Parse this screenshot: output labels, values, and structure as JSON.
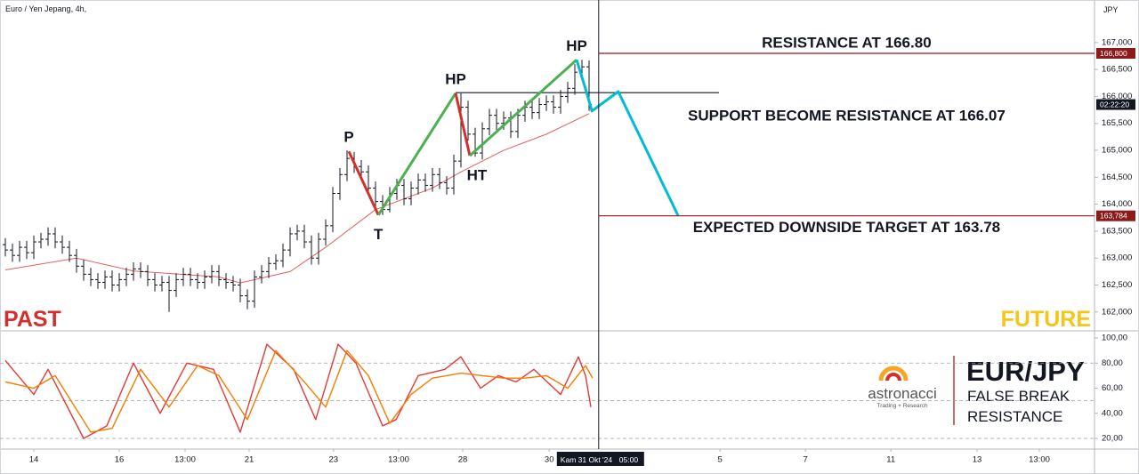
{
  "title": "Euro / Yen Jepang, 4h,",
  "currency": "JPY",
  "past_label": "PAST",
  "future_label": "FUTURE",
  "brand": {
    "name": "astronacci",
    "tagline": "Trading + Research",
    "pair": "EUR/JPY",
    "caption": [
      "FALSE BREAK",
      "RESISTANCE"
    ]
  },
  "countdown": "02:22:20",
  "chart_data": [
    {
      "type": "ohlc",
      "color": "#131722",
      "xlim": [
        -0.75,
        153
      ],
      "ylim": [
        161.65,
        167.79
      ],
      "xticks": [
        {
          "value": 4,
          "label": "14"
        },
        {
          "value": 16,
          "label": "16"
        },
        {
          "value": 25.25,
          "label": "13:00"
        },
        {
          "value": 34.25,
          "label": "21"
        },
        {
          "value": 46.1,
          "label": "23"
        },
        {
          "value": 55.25,
          "label": "13:00"
        },
        {
          "value": 64.25,
          "label": "28"
        },
        {
          "value": 76.4,
          "label": "30"
        },
        {
          "value": 100.4,
          "label": "5"
        },
        {
          "value": 112.4,
          "label": "7"
        },
        {
          "value": 124.4,
          "label": "11"
        },
        {
          "value": 136.5,
          "label": "13"
        },
        {
          "value": 145.25,
          "label": "13:00"
        }
      ],
      "crosshair": {
        "value": 83.35,
        "label": "Kam 31 Okt '24",
        "time": "05:00"
      },
      "yticks": [
        {
          "value": 167,
          "label": "167,000"
        },
        {
          "value": 166.5,
          "label": "166,500"
        },
        {
          "value": 166,
          "label": "166,000"
        },
        {
          "value": 165.5,
          "label": "165,500"
        },
        {
          "value": 165,
          "label": "165,000"
        },
        {
          "value": 164.5,
          "label": "164,500"
        },
        {
          "value": 164,
          "label": "164,000"
        },
        {
          "value": 163.5,
          "label": "163,500"
        },
        {
          "value": 163,
          "label": "163,000"
        },
        {
          "value": 162.5,
          "label": "162,500"
        },
        {
          "value": 162,
          "label": "162,000"
        }
      ],
      "open": [
        163.25,
        163.15,
        163.05,
        163.2,
        163.1,
        163.3,
        163.35,
        163.45,
        163.3,
        163.2,
        163.05,
        162.85,
        162.7,
        162.6,
        162.55,
        162.65,
        162.5,
        162.6,
        162.7,
        162.8,
        162.75,
        162.6,
        162.5,
        162.55,
        162.4,
        162.6,
        162.7,
        162.6,
        162.55,
        162.65,
        162.75,
        162.6,
        162.55,
        162.5,
        162.3,
        162.2,
        162.65,
        162.75,
        162.9,
        162.95,
        163.15,
        163.45,
        163.5,
        163.3,
        163.0,
        163.35,
        163.6,
        164.2,
        164.55,
        164.85,
        164.7,
        164.6,
        164.3,
        164.05,
        163.9,
        164.2,
        164.35,
        164.1,
        164.3,
        164.45,
        164.35,
        164.55,
        164.4,
        164.3,
        164.8,
        165.8,
        165.3,
        164.95,
        165.4,
        165.65,
        165.5,
        165.6,
        165.35,
        165.65,
        165.8,
        165.7,
        165.85,
        165.9,
        165.8,
        166.0,
        166.15,
        166.45,
        166.55
      ],
      "high": [
        163.37,
        163.27,
        163.32,
        163.32,
        163.42,
        163.47,
        163.57,
        163.57,
        163.42,
        163.32,
        163.17,
        162.97,
        162.82,
        162.72,
        162.77,
        162.77,
        162.72,
        162.82,
        162.92,
        162.92,
        162.87,
        162.72,
        162.67,
        162.67,
        162.72,
        162.82,
        162.82,
        162.72,
        162.77,
        162.87,
        162.87,
        162.72,
        162.67,
        162.62,
        162.42,
        162.77,
        162.87,
        163.02,
        163.07,
        163.27,
        163.57,
        163.62,
        163.62,
        163.42,
        163.47,
        163.72,
        164.32,
        164.67,
        165.0,
        164.97,
        164.82,
        164.72,
        164.42,
        164.17,
        164.32,
        164.47,
        164.47,
        164.42,
        164.57,
        164.57,
        164.67,
        164.67,
        164.52,
        164.92,
        166.06,
        165.92,
        165.42,
        165.52,
        165.77,
        165.77,
        165.72,
        165.72,
        165.77,
        165.92,
        165.92,
        165.97,
        166.02,
        166.02,
        166.12,
        166.27,
        166.6,
        166.68,
        166.67
      ],
      "low": [
        163.03,
        162.93,
        162.93,
        162.98,
        162.98,
        163.18,
        163.23,
        163.18,
        163.08,
        162.93,
        162.73,
        162.58,
        162.48,
        162.43,
        162.43,
        162.38,
        162.38,
        162.48,
        162.58,
        162.63,
        162.48,
        162.38,
        162.38,
        162.0,
        162.28,
        162.48,
        162.48,
        162.43,
        162.43,
        162.53,
        162.48,
        162.43,
        162.38,
        162.18,
        162.05,
        162.08,
        162.53,
        162.63,
        162.78,
        162.83,
        163.03,
        163.33,
        163.18,
        162.88,
        162.88,
        163.23,
        163.48,
        164.08,
        164.43,
        164.58,
        164.48,
        164.18,
        163.93,
        163.8,
        163.85,
        164.08,
        163.98,
        163.98,
        164.18,
        164.23,
        164.23,
        164.28,
        164.18,
        164.18,
        164.68,
        165.18,
        164.88,
        164.83,
        165.28,
        165.38,
        165.38,
        165.23,
        165.23,
        165.53,
        165.58,
        165.58,
        165.73,
        165.68,
        165.68,
        165.88,
        166.03,
        166.33,
        165.73
      ],
      "close": [
        163.15,
        163.05,
        163.2,
        163.1,
        163.3,
        163.35,
        163.45,
        163.3,
        163.2,
        163.05,
        162.85,
        162.7,
        162.6,
        162.55,
        162.65,
        162.5,
        162.6,
        162.7,
        162.8,
        162.75,
        162.6,
        162.5,
        162.55,
        162.4,
        162.6,
        162.7,
        162.6,
        162.55,
        162.65,
        162.75,
        162.6,
        162.55,
        162.5,
        162.3,
        162.2,
        162.65,
        162.75,
        162.9,
        162.95,
        163.15,
        163.45,
        163.5,
        163.3,
        163.0,
        163.35,
        163.6,
        164.2,
        164.55,
        164.85,
        164.7,
        164.6,
        164.3,
        164.05,
        163.9,
        164.2,
        164.35,
        164.1,
        164.3,
        164.45,
        164.35,
        164.55,
        164.4,
        164.3,
        164.8,
        165.8,
        165.3,
        164.95,
        165.4,
        165.65,
        165.5,
        165.6,
        165.35,
        165.65,
        165.8,
        165.7,
        165.85,
        165.9,
        165.8,
        166.0,
        166.15,
        166.45,
        166.55,
        165.85
      ],
      "ma": {
        "color": "#e06060",
        "x": [
          0,
          10,
          18,
          30,
          33,
          40,
          45,
          52,
          60,
          64,
          70,
          76,
          82
        ],
        "values": [
          162.78,
          163.0,
          162.76,
          162.65,
          162.54,
          162.75,
          163.2,
          163.9,
          164.3,
          164.6,
          165.0,
          165.3,
          165.68
        ]
      },
      "pattern": [
        {
          "color": "#d32f2f",
          "x": [
            48.25,
            52.4
          ],
          "y": [
            164.98,
            163.8
          ]
        },
        {
          "color": "#4caf50",
          "x": [
            52.4,
            63.25
          ],
          "y": [
            163.8,
            166.06
          ]
        },
        {
          "color": "#d32f2f",
          "x": [
            63.25,
            65.25
          ],
          "y": [
            166.06,
            164.9
          ]
        },
        {
          "color": "#4caf50",
          "x": [
            65.25,
            80.25
          ],
          "y": [
            164.9,
            166.68
          ]
        },
        {
          "color": "#00bcd4",
          "x": [
            80.25,
            81.5,
            82.4,
            86.1,
            94.5
          ],
          "y": [
            166.68,
            166.14,
            165.73,
            166.09,
            163.79
          ]
        }
      ],
      "pivots": [
        {
          "label": "P",
          "x": 48.25,
          "y": 164.98,
          "pos": "above"
        },
        {
          "label": "T",
          "x": 52.4,
          "y": 163.8,
          "pos": "below"
        },
        {
          "label": "HP",
          "x": 63.25,
          "y": 166.06,
          "pos": "above"
        },
        {
          "label": "HT",
          "x": 65.25,
          "y": 164.9,
          "pos": "below"
        },
        {
          "label": "HP",
          "x": 80.25,
          "y": 166.68,
          "pos": "above"
        }
      ],
      "levels": [
        {
          "value": 166.8,
          "label": "166,800",
          "text": "RESISTANCE AT 166.80",
          "color": "#8b1a1a",
          "text_pos": "above"
        },
        {
          "value": 163.784,
          "label": "163,784",
          "text": "EXPECTED DOWNSIDE TARGET AT 163.78",
          "color": "#8b1a1a",
          "text_pos": "below"
        }
      ],
      "support": {
        "value": 166.07,
        "text": "SUPPORT BECOME RESISTANCE AT 166.07",
        "color": "#131722",
        "x": [
          63.25,
          100.25
        ]
      }
    },
    {
      "type": "line",
      "ylim": [
        11.5,
        105.7
      ],
      "yticks": [
        {
          "value": 100,
          "label": "100,00"
        },
        {
          "value": 80,
          "label": "80,00"
        },
        {
          "value": 60,
          "label": "60,00"
        },
        {
          "value": 40,
          "label": "40,00"
        },
        {
          "value": 20,
          "label": "20,00"
        }
      ],
      "bands": [
        80,
        50,
        20
      ],
      "series": [
        {
          "color": "#e53935",
          "x": [
            0,
            4,
            6,
            11,
            14.25,
            18,
            21.75,
            25.5,
            29.25,
            33,
            36.75,
            40.5,
            43.6,
            46.75,
            49.25,
            53,
            54.9,
            58,
            61.75,
            64,
            66.75,
            69.25,
            71.75,
            74.25,
            78,
            80.5,
            81.5,
            82.25
          ],
          "values": [
            82,
            55,
            75,
            20,
            30,
            80,
            40,
            80,
            75,
            25,
            95,
            75,
            35,
            95,
            80,
            30,
            35,
            70,
            75,
            85,
            60,
            70,
            65,
            75,
            55,
            85,
            70,
            45
          ]
        },
        {
          "color": "#f57c00",
          "x": [
            0,
            4,
            7,
            12,
            15,
            19,
            23,
            27,
            30,
            34,
            38,
            42,
            45,
            48,
            51,
            54,
            57,
            60,
            64,
            67,
            70,
            73,
            76,
            79,
            81.5,
            82.5
          ],
          "values": [
            65,
            60,
            70,
            25,
            28,
            75,
            45,
            78,
            70,
            35,
            90,
            65,
            45,
            90,
            70,
            32,
            55,
            68,
            72,
            70,
            68,
            68,
            70,
            60,
            78,
            68
          ]
        }
      ]
    }
  ]
}
